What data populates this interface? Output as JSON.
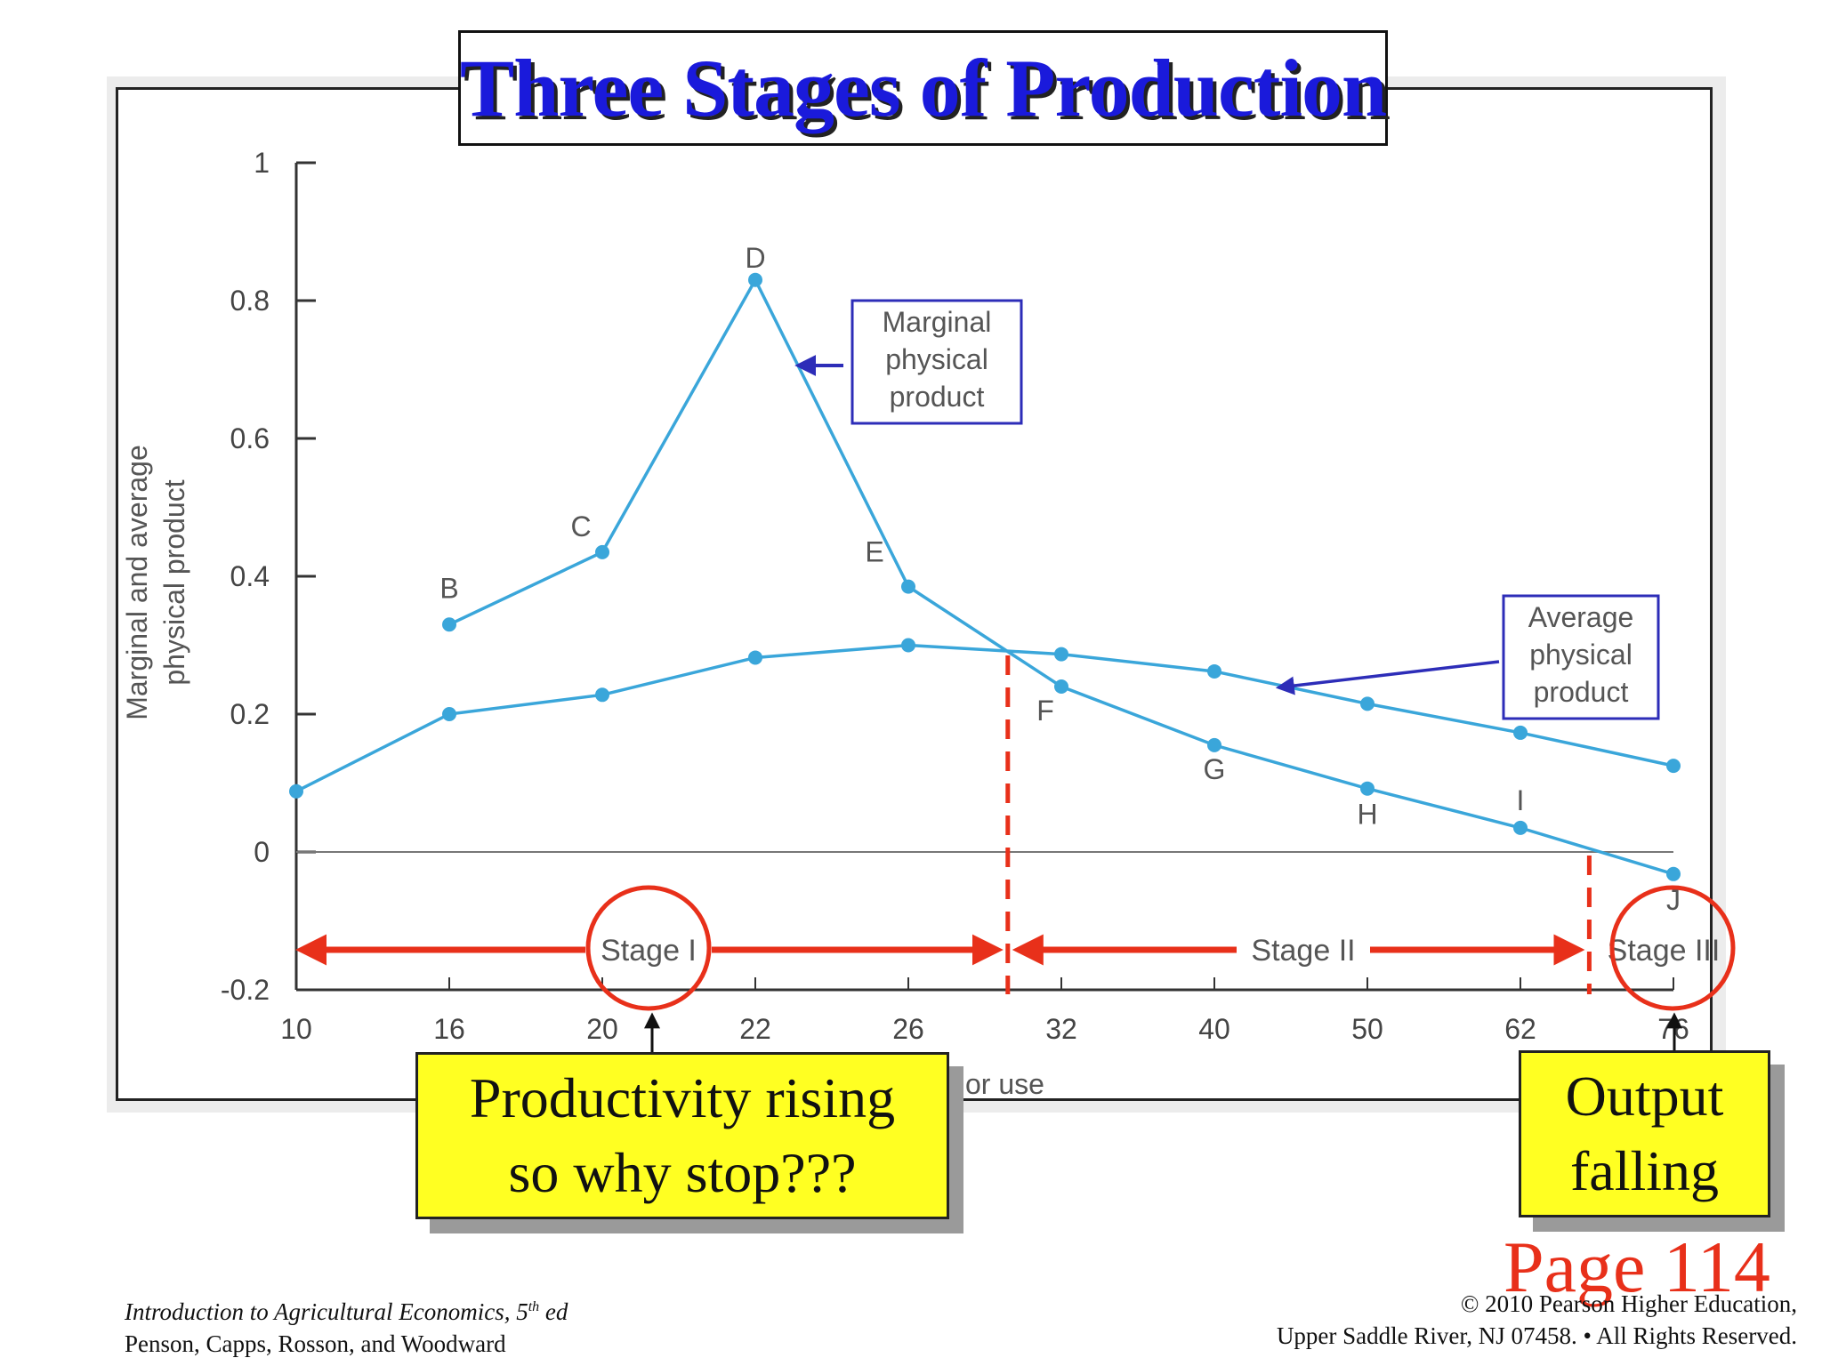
{
  "chart_data": {
    "type": "line",
    "title": "Three Stages of Production",
    "ylabel_line1": "Marginal and average",
    "ylabel_line2": "physical product",
    "xlabel_partial": "or use",
    "x_categories": [
      "10",
      "16",
      "20",
      "22",
      "26",
      "32",
      "40",
      "50",
      "62",
      "76"
    ],
    "ylim": [
      -0.2,
      1
    ],
    "y_ticks": [
      -0.2,
      0,
      0.2,
      0.4,
      0.6,
      0.8,
      1
    ],
    "y_tick_labels": [
      "-0.2",
      "0",
      "0.2",
      "0.4",
      "0.6",
      "0.8",
      "1"
    ],
    "series": [
      {
        "name": "Marginal physical product",
        "label_lines": [
          "Marginal",
          "physical",
          "product"
        ],
        "x_index": [
          1,
          2,
          3,
          4,
          5,
          6,
          7,
          8,
          9
        ],
        "values": [
          0.33,
          0.435,
          0.83,
          0.385,
          0.24,
          0.155,
          0.092,
          0.035,
          -0.032
        ],
        "point_labels": [
          "B",
          "C",
          "D",
          "E",
          "F",
          "G",
          "H",
          "I",
          "J"
        ]
      },
      {
        "name": "Average physical product",
        "label_lines": [
          "Average",
          "physical",
          "product"
        ],
        "x_index": [
          0,
          1,
          2,
          3,
          4,
          5,
          6,
          7,
          8,
          9
        ],
        "values": [
          0.088,
          0.2,
          0.228,
          0.282,
          0.3,
          0.287,
          0.262,
          0.215,
          0.173,
          0.125
        ]
      }
    ],
    "stage_boundaries_x_index": [
      4.65,
      8.45
    ],
    "stages": [
      "Stage I",
      "Stage II",
      "Stage III"
    ],
    "colors": {
      "series": "#3aa6da",
      "stage": "#e8301a",
      "label_box": "#2d2db8",
      "axis": "#333333"
    }
  },
  "callouts": {
    "left_line1": "Productivity rising",
    "left_line2": "so why stop???",
    "right_line1": "Output",
    "right_line2": "falling"
  },
  "page_label": "Page 114",
  "footer": {
    "left_line1_a": "Introduction to Agricultural Economics, 5",
    "left_line1_sup": "th",
    "left_line1_b": " ed",
    "left_line2": "Penson, Capps, Rosson, and Woodward",
    "right_line1": "© 2010 Pearson Higher Education,",
    "right_line2": "Upper Saddle River, NJ 07458. • All Rights Reserved."
  }
}
